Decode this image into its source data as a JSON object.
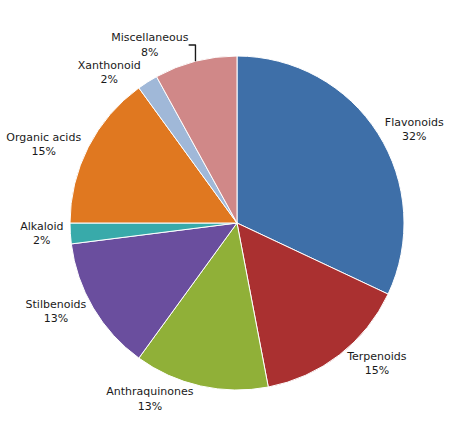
{
  "chart_data": {
    "type": "pie",
    "categories": [
      "Flavonoids",
      "Terpenoids",
      "Anthraquinones",
      "Stilbenoids",
      "Alkaloid",
      "Organic acids",
      "Xanthonoid",
      "Miscellaneous"
    ],
    "values": [
      32,
      15,
      13,
      13,
      2,
      15,
      2,
      8
    ],
    "value_labels": [
      "32%",
      "15%",
      "13%",
      "13%",
      "2%",
      "15%",
      "2%",
      "8%"
    ],
    "colors": [
      "#3e6fa8",
      "#aa3030",
      "#90b038",
      "#6a4e9e",
      "#38aaaa",
      "#e07820",
      "#a0b8d8",
      "#d08888"
    ],
    "data_labels": true
  }
}
